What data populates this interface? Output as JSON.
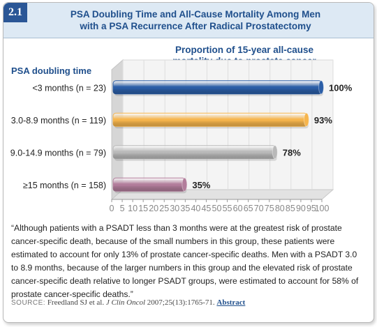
{
  "badge": "2.1",
  "title_line1": "PSA Doubling Time and All-Cause Mortality Among Men",
  "title_line2": "with a PSA Recurrence After Radical Prostatectomy",
  "chart_data": {
    "type": "bar",
    "orientation": "horizontal",
    "title_line1": "Proportion of 15-year all-cause",
    "title_line2": "mortality due to prostate cancer",
    "ylabel": "PSA doubling time",
    "categories": [
      "<3 months (n = 23)",
      "3.0-8.9 months (n = 119)",
      "9.0-14.9 months (n = 79)",
      "≥15 months (n = 158)"
    ],
    "values": [
      100,
      93,
      78,
      35
    ],
    "value_labels": [
      "100%",
      "93%",
      "78%",
      "35%"
    ],
    "bar_colors": [
      "#2b5ea7",
      "#f6b54d",
      "#b9b9b9",
      "#b27d9b"
    ],
    "xlim": [
      0,
      100
    ],
    "xticks": [
      "0",
      "5",
      "10",
      "15",
      "20",
      "25",
      "30",
      "35",
      "40",
      "45",
      "50",
      "55",
      "60",
      "65",
      "70",
      "75",
      "80",
      "85",
      "90",
      "95",
      "100"
    ],
    "grid": true
  },
  "quote_text": "“Although patients with a PSADT less than 3 months were at the greatest risk of prostate cancer-specific death, because of the small numbers in this group, these patients were estimated to account for only 13% of prostate cancer-specific deaths. Men with a PSADT 3.0 to 8.9 months, because of the larger numbers in this group and the elevated risk of prostate cancer-specific death relative to longer PSADT groups, were estimated to account for 58% of prostate cancer-specific deaths.”",
  "source": {
    "label": "SOURCE:",
    "text": "Freedland SJ et al.",
    "journal": "J Clin Oncol",
    "citation": "2007;25(13):1765-71.",
    "link": "Abstract"
  }
}
